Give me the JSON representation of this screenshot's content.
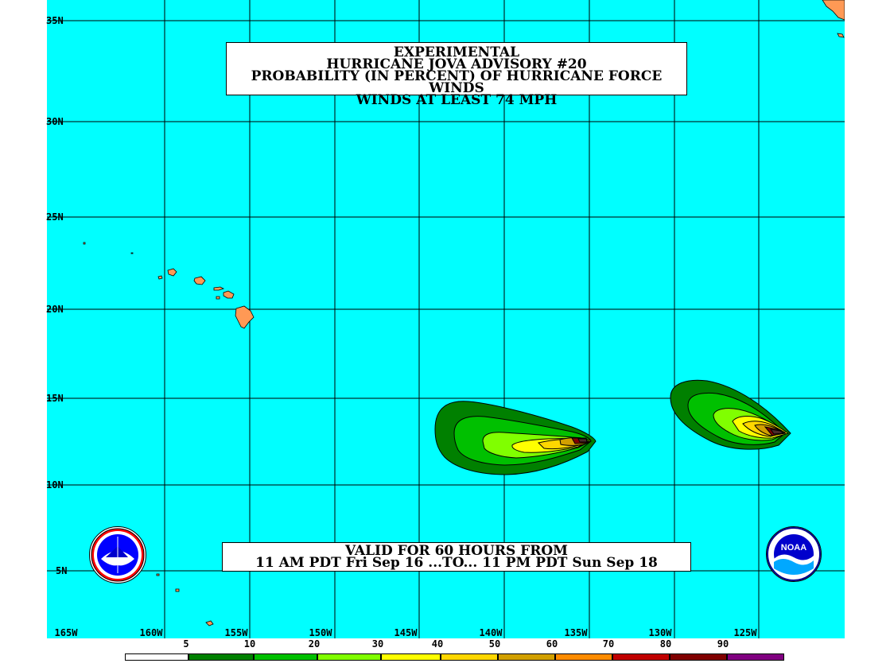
{
  "title": {
    "line1": "EXPERIMENTAL",
    "line2": "HURRICANE JOVA ADVISORY #20",
    "line3": "PROBABILITY (IN PERCENT) OF HURRICANE FORCE WINDS",
    "line4": "WINDS AT LEAST 74 MPH"
  },
  "valid": {
    "line1": "VALID FOR 60 HOURS FROM",
    "line2": "11 AM PDT Fri Sep 16 ...TO... 11 PM PDT Sun Sep 18"
  },
  "lat_labels": [
    "35N",
    "30N",
    "25N",
    "20N",
    "15N",
    "10N",
    "5N"
  ],
  "lon_labels": [
    "165W",
    "160W",
    "155W",
    "150W",
    "145W",
    "140W",
    "135W",
    "130W",
    "125W"
  ],
  "legend": {
    "values": [
      "5",
      "10",
      "20",
      "30",
      "40",
      "50",
      "60",
      "70",
      "80",
      "90"
    ],
    "colors": [
      "#ffffff",
      "#008000",
      "#00c000",
      "#80ff00",
      "#ffff00",
      "#ffd700",
      "#d2a000",
      "#ff8c00",
      "#c00000",
      "#800000",
      "#800080"
    ]
  },
  "colors": {
    "ocean": "#00ffff",
    "land": "#ff9955",
    "grid": "#000000"
  },
  "logos": {
    "left": "nws-logo-icon",
    "right": "noaa-logo-icon",
    "noaa_text": "NOAA"
  }
}
